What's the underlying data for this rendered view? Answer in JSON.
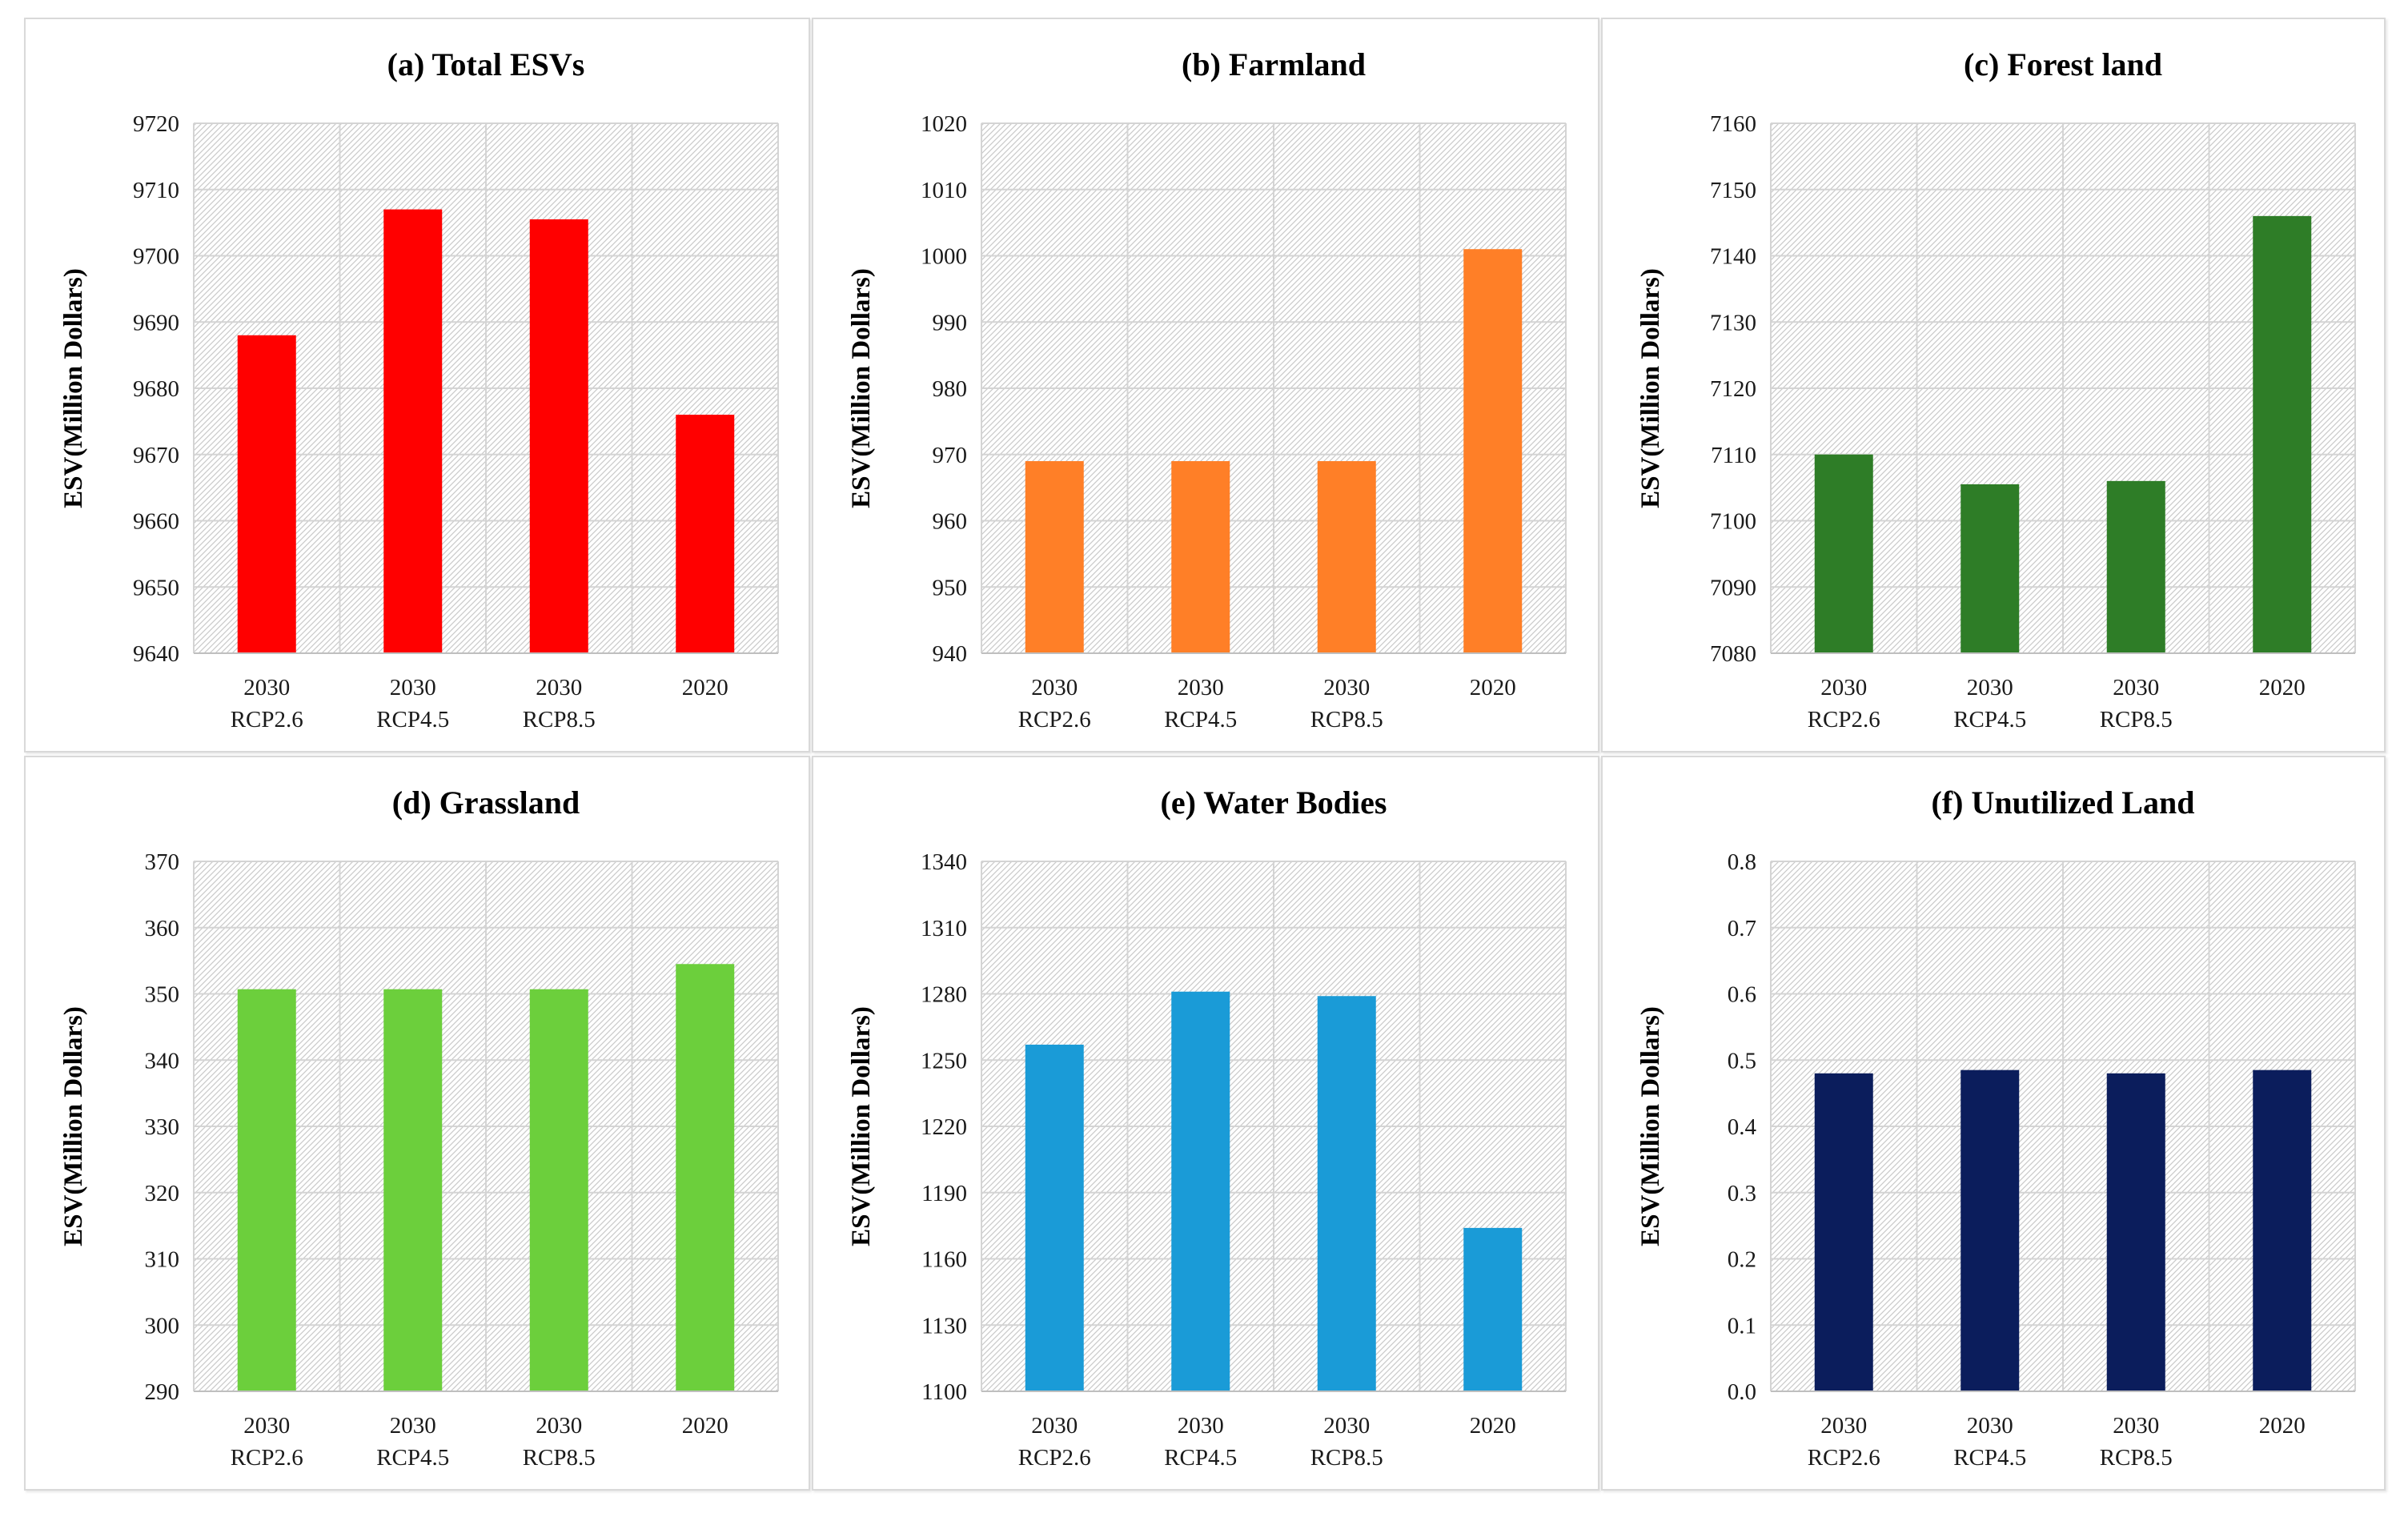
{
  "chart_data": [
    {
      "id": "total-esvs",
      "type": "bar",
      "title": "(a) Total ESVs",
      "ylabel": "ESV(Million Dollars)",
      "xlabel": "",
      "categories": [
        [
          "2030",
          "RCP2.6"
        ],
        [
          "2030",
          "RCP4.5"
        ],
        [
          "2030",
          "RCP8.5"
        ],
        [
          "2020",
          ""
        ]
      ],
      "values": [
        9688,
        9707,
        9705.5,
        9676
      ],
      "ylim": [
        9640,
        9720
      ],
      "yticks": [
        "9640",
        "9650",
        "9660",
        "9670",
        "9680",
        "9690",
        "9700",
        "9710",
        "9720"
      ],
      "color": "#ff0000",
      "grid": true
    },
    {
      "id": "farmland",
      "type": "bar",
      "title": "(b) Farmland",
      "ylabel": "ESV(Million Dollars)",
      "xlabel": "",
      "categories": [
        [
          "2030",
          "RCP2.6"
        ],
        [
          "2030",
          "RCP4.5"
        ],
        [
          "2030",
          "RCP8.5"
        ],
        [
          "2020",
          ""
        ]
      ],
      "values": [
        969,
        969,
        969,
        1001
      ],
      "ylim": [
        940,
        1020
      ],
      "yticks": [
        "940",
        "950",
        "960",
        "970",
        "980",
        "990",
        "1000",
        "1010",
        "1020"
      ],
      "color": "#ff7f27",
      "grid": true
    },
    {
      "id": "forest-land",
      "type": "bar",
      "title": "(c) Forest land",
      "ylabel": "ESV(Million Dollars)",
      "xlabel": "",
      "categories": [
        [
          "2030",
          "RCP2.6"
        ],
        [
          "2030",
          "RCP4.5"
        ],
        [
          "2030",
          "RCP8.5"
        ],
        [
          "2020",
          ""
        ]
      ],
      "values": [
        7110,
        7105.5,
        7106,
        7146
      ],
      "ylim": [
        7080,
        7160
      ],
      "yticks": [
        "7080",
        "7090",
        "7100",
        "7110",
        "7120",
        "7130",
        "7140",
        "7150",
        "7160"
      ],
      "color": "#2e7d27",
      "grid": true
    },
    {
      "id": "grassland",
      "type": "bar",
      "title": "(d) Grassland",
      "ylabel": "ESV(Million Dollars)",
      "xlabel": "",
      "categories": [
        [
          "2030",
          "RCP2.6"
        ],
        [
          "2030",
          "RCP4.5"
        ],
        [
          "2030",
          "RCP8.5"
        ],
        [
          "2020",
          ""
        ]
      ],
      "values": [
        350.7,
        350.7,
        350.7,
        354.5
      ],
      "ylim": [
        290,
        370
      ],
      "yticks": [
        "290",
        "300",
        "310",
        "320",
        "330",
        "340",
        "350",
        "360",
        "370"
      ],
      "color": "#6ccf3c",
      "grid": true
    },
    {
      "id": "water-bodies",
      "type": "bar",
      "title": "(e) Water Bodies",
      "ylabel": "ESV(Million Dollars)",
      "xlabel": "",
      "categories": [
        [
          "2030",
          "RCP2.6"
        ],
        [
          "2030",
          "RCP4.5"
        ],
        [
          "2030",
          "RCP8.5"
        ],
        [
          "2020",
          ""
        ]
      ],
      "values": [
        1257,
        1281,
        1279,
        1174
      ],
      "ylim": [
        1100,
        1340
      ],
      "yticks": [
        "1100",
        "1130",
        "1160",
        "1190",
        "1220",
        "1250",
        "1280",
        "1310",
        "1340"
      ],
      "color": "#1a9bd7",
      "grid": true
    },
    {
      "id": "unutilized-land",
      "type": "bar",
      "title": "(f) Unutilized Land",
      "ylabel": "ESV(Million Dollars)",
      "xlabel": "",
      "categories": [
        [
          "2030",
          "RCP2.6"
        ],
        [
          "2030",
          "RCP4.5"
        ],
        [
          "2030",
          "RCP8.5"
        ],
        [
          "2020",
          ""
        ]
      ],
      "values": [
        0.48,
        0.485,
        0.48,
        0.485
      ],
      "ylim": [
        0,
        0.8
      ],
      "yticks": [
        "0.0",
        "0.1",
        "0.2",
        "0.3",
        "0.4",
        "0.5",
        "0.6",
        "0.7",
        "0.8"
      ],
      "color": "#0b1d5c",
      "grid": true
    }
  ]
}
